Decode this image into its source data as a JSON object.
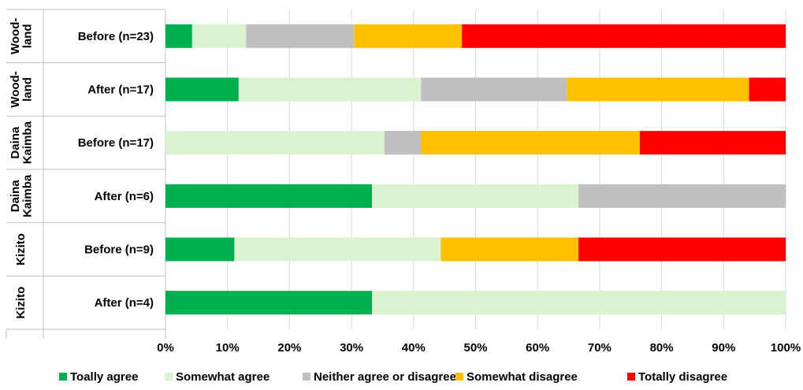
{
  "chart_data": {
    "type": "bar",
    "orientation": "horizontal",
    "stacked": "percent",
    "groups": [
      "Wood- land",
      "Wood- land",
      "Daina Kaimba",
      "Daina Kaimba",
      "Kizito",
      "Kizito"
    ],
    "categories": [
      "Before (n=23)",
      "After (n=17)",
      "Before (n=17)",
      "After (n=6)",
      "Before (n=9)",
      "After (n=4)"
    ],
    "series": [
      {
        "name": "Toally agree",
        "color": "#00b050",
        "values": [
          4.3,
          11.8,
          0,
          33.3,
          11.1,
          33.3
        ]
      },
      {
        "name": "Somewhat agree",
        "color": "#d9f2d0",
        "values": [
          8.7,
          29.4,
          35.3,
          33.3,
          33.3,
          66.7
        ]
      },
      {
        "name": "Neither agree or disagree",
        "color": "#bfbfbf",
        "values": [
          17.4,
          23.5,
          5.9,
          33.4,
          0,
          0
        ]
      },
      {
        "name": "Somewhat disagree",
        "color": "#ffc000",
        "values": [
          17.4,
          29.4,
          35.3,
          0,
          22.2,
          0
        ]
      },
      {
        "name": "Totally disagree",
        "color": "#ff0000",
        "values": [
          52.2,
          5.9,
          23.5,
          0,
          33.4,
          0
        ]
      }
    ],
    "xticks": [
      "0%",
      "10%",
      "20%",
      "30%",
      "40%",
      "50%",
      "60%",
      "70%",
      "80%",
      "90%",
      "100%"
    ],
    "xlim": [
      0,
      100
    ],
    "grid": true,
    "legend": "bottom"
  }
}
